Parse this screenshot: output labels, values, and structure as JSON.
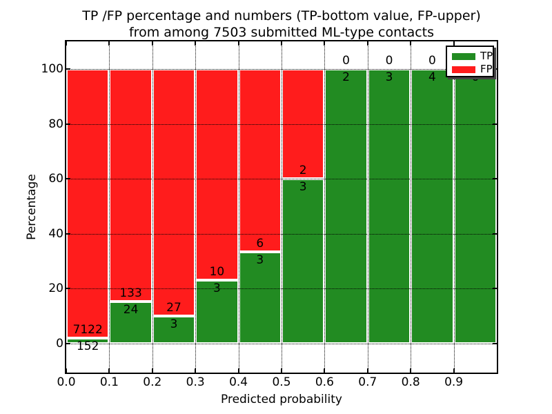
{
  "chart_data": {
    "type": "bar",
    "stacked": true,
    "title_line1": "TP /FP percentage and numbers (TP-bottom value, FP-upper)",
    "title_line2": "from among 7503 submitted ML-type contacts",
    "xlabel": "Predicted probability",
    "ylabel": "Percentage",
    "x_tick_labels": [
      "0.0",
      "0.1",
      "0.2",
      "0.3",
      "0.4",
      "0.5",
      "0.6",
      "0.7",
      "0.8",
      "0.9"
    ],
    "y_ticks": [
      0,
      20,
      40,
      60,
      80,
      100
    ],
    "xlim": [
      0.0,
      1.0
    ],
    "ylim": [
      -10.5,
      110
    ],
    "grid": "dotted",
    "legend_position": "upper right",
    "legend": [
      {
        "label": "TP",
        "color": "#228b22"
      },
      {
        "label": "FP",
        "color": "#ff1c1c"
      }
    ],
    "series_note": "each bin stacked to 100%: TP bottom (green), FP upper (red); labels show raw counts at the TP/FP boundary",
    "bins": [
      {
        "x0": 0.0,
        "x1": 0.1,
        "tp": 152,
        "fp": 7122
      },
      {
        "x0": 0.1,
        "x1": 0.2,
        "tp": 24,
        "fp": 133
      },
      {
        "x0": 0.2,
        "x1": 0.3,
        "tp": 3,
        "fp": 27
      },
      {
        "x0": 0.3,
        "x1": 0.4,
        "tp": 3,
        "fp": 10
      },
      {
        "x0": 0.4,
        "x1": 0.5,
        "tp": 3,
        "fp": 6
      },
      {
        "x0": 0.5,
        "x1": 0.6,
        "tp": 3,
        "fp": 2
      },
      {
        "x0": 0.6,
        "x1": 0.7,
        "tp": 2,
        "fp": 0
      },
      {
        "x0": 0.7,
        "x1": 0.8,
        "tp": 3,
        "fp": 0
      },
      {
        "x0": 0.8,
        "x1": 0.9,
        "tp": 4,
        "fp": 0
      },
      {
        "x0": 0.9,
        "x1": 1.0,
        "tp": 6,
        "fp": 0
      }
    ],
    "colors": {
      "tp": "#228b22",
      "fp": "#ff1c1c",
      "bar_edge": "#ffffff",
      "grid": "#000000",
      "background": "#ffffff"
    }
  }
}
